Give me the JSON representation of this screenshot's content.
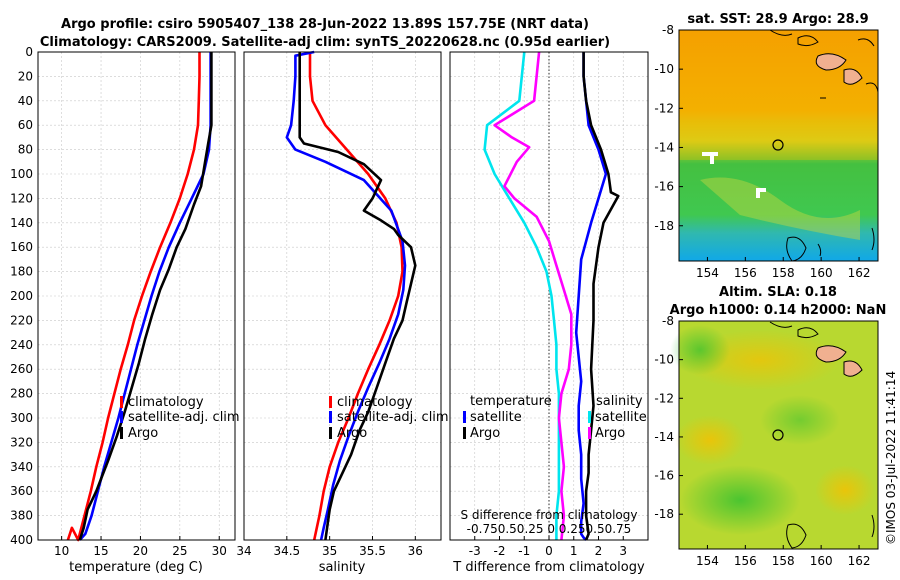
{
  "header": {
    "title_line1": "Argo profile: csiro 5905407_138 28-Jun-2022 13.89S 157.75E (NRT data)",
    "title_line2": "Climatology: CARS2009. Satellite-adj clim: synTS_20220628.nc (0.95d earlier)"
  },
  "colors": {
    "climatology": "#ff0000",
    "satellite": "#0000ff",
    "argo": "#000000",
    "satellite_s": "#00e5ee",
    "argo_s": "#ff00ff"
  },
  "chart_data": [
    {
      "type": "line",
      "id": "temperature",
      "xlabel": "temperature (deg C)",
      "ylabel": "",
      "xlim": [
        7,
        32
      ],
      "ylim": [
        0,
        400
      ],
      "xticks": [
        10,
        15,
        20,
        25,
        30
      ],
      "yticks": [
        0,
        20,
        40,
        60,
        80,
        100,
        120,
        140,
        160,
        180,
        200,
        220,
        240,
        260,
        280,
        300,
        320,
        340,
        360,
        380,
        400
      ],
      "legend": [
        "climatology",
        "satellite-adj. clim",
        "Argo"
      ],
      "legend_position": "bottom-right",
      "series": [
        {
          "name": "climatology",
          "color": "#ff0000",
          "x": [
            27.5,
            27.5,
            27.4,
            27.3,
            26.8,
            26.0,
            25.0,
            23.8,
            22.5,
            21.3,
            20.2,
            19.2,
            18.4,
            17.5,
            16.7,
            15.9,
            15.2,
            14.4,
            13.7,
            12.9,
            12.1,
            11.3,
            10.8
          ],
          "y": [
            0,
            20,
            40,
            60,
            80,
            100,
            120,
            140,
            160,
            180,
            200,
            220,
            240,
            260,
            280,
            300,
            320,
            340,
            360,
            380,
            400,
            390,
            400
          ]
        },
        {
          "name": "satellite-adj. clim",
          "color": "#0000ff",
          "x": [
            28.9,
            28.9,
            28.9,
            28.9,
            28.7,
            28.0,
            26.5,
            25.0,
            23.6,
            22.4,
            21.4,
            20.5,
            19.6,
            18.8,
            18.0,
            17.2,
            16.3,
            15.4,
            14.6,
            13.8,
            13.0,
            12.3
          ],
          "y": [
            0,
            20,
            40,
            60,
            80,
            100,
            120,
            140,
            160,
            180,
            200,
            220,
            240,
            260,
            280,
            300,
            320,
            340,
            360,
            380,
            395,
            400
          ]
        },
        {
          "name": "Argo",
          "color": "#000000",
          "x": [
            29.0,
            29.0,
            29.0,
            29.0,
            28.6,
            28.2,
            27.7,
            26.8,
            25.7,
            24.6,
            23.6,
            22.5,
            21.5,
            20.6,
            19.8,
            18.9,
            18.0,
            17.0,
            15.9,
            15.0,
            14.4,
            13.3,
            12.8,
            12.3
          ],
          "y": [
            0,
            20,
            40,
            60,
            75,
            90,
            110,
            125,
            145,
            160,
            178,
            195,
            215,
            235,
            255,
            275,
            295,
            315,
            335,
            350,
            360,
            375,
            390,
            400
          ]
        }
      ]
    },
    {
      "type": "line",
      "id": "salinity",
      "xlabel": "salinity",
      "ylabel": "",
      "xlim": [
        34,
        36.3
      ],
      "ylim": [
        0,
        400
      ],
      "xticks": [
        34,
        34.5,
        35,
        35.5,
        36
      ],
      "legend": [
        "climatology",
        "satellite-adj. clim",
        "Argo"
      ],
      "legend_position": "bottom-right",
      "series": [
        {
          "name": "climatology",
          "color": "#ff0000",
          "x": [
            34.77,
            34.77,
            34.8,
            34.95,
            35.2,
            35.45,
            35.65,
            35.78,
            35.84,
            35.85,
            35.8,
            35.7,
            35.58,
            35.45,
            35.33,
            35.22,
            35.1,
            35.0,
            34.93,
            34.88,
            34.85,
            34.82
          ],
          "y": [
            0,
            20,
            40,
            60,
            80,
            100,
            120,
            140,
            160,
            180,
            200,
            220,
            240,
            260,
            280,
            300,
            320,
            340,
            360,
            380,
            390,
            400
          ]
        },
        {
          "name": "satellite-adj. clim",
          "color": "#0000ff",
          "x": [
            34.82,
            34.6,
            34.6,
            34.58,
            34.55,
            34.5,
            34.6,
            34.95,
            35.4,
            35.72,
            35.85,
            35.88,
            35.86,
            35.8,
            35.7,
            35.58,
            35.45,
            35.33,
            35.22,
            35.12,
            35.04,
            34.98,
            34.93,
            34.9
          ],
          "y": [
            0,
            3,
            20,
            40,
            60,
            70,
            80,
            90,
            105,
            130,
            155,
            175,
            195,
            215,
            235,
            255,
            275,
            295,
            315,
            335,
            355,
            375,
            390,
            400
          ]
        },
        {
          "name": "Argo",
          "color": "#000000",
          "x": [
            34.65,
            34.65,
            34.65,
            34.65,
            34.65,
            34.7,
            35.1,
            35.4,
            35.6,
            35.5,
            35.4,
            35.6,
            35.75,
            35.8,
            35.95,
            36.0,
            35.95,
            35.9,
            35.85,
            35.75,
            35.65,
            35.55,
            35.45,
            35.35,
            35.25,
            35.15,
            35.05,
            35.0,
            34.97,
            34.95
          ],
          "y": [
            0,
            20,
            40,
            60,
            70,
            75,
            82,
            92,
            105,
            120,
            130,
            138,
            145,
            150,
            160,
            175,
            190,
            205,
            220,
            235,
            255,
            275,
            295,
            310,
            330,
            345,
            360,
            375,
            390,
            400
          ]
        }
      ]
    },
    {
      "type": "line",
      "id": "differences",
      "xlabel": "T difference from climatology",
      "top_axis_label": "S difference from climatology",
      "xlim": [
        -4,
        4
      ],
      "ylim": [
        0,
        400
      ],
      "xticks": [
        -3,
        -2,
        -1,
        0,
        1,
        2,
        3
      ],
      "top_xticks": [
        "-0.75",
        "-0.5",
        "-0.25",
        "0",
        "0.25",
        "0.5",
        "0.75"
      ],
      "top_tick_text": "-0.750.50.25 0 0.250.50.75",
      "legend_temperature": {
        "header": "temperature",
        "items": [
          "satellite",
          "Argo"
        ]
      },
      "legend_salinity": {
        "header": "salinity",
        "items": [
          "satellite",
          "Argo"
        ]
      },
      "series": [
        {
          "name": "T satellite",
          "color": "#0000ff",
          "x": [
            1.4,
            1.4,
            1.5,
            1.6,
            2.0,
            2.3,
            1.7,
            1.3,
            1.2,
            1.1,
            1.2,
            1.3,
            1.2,
            1.2,
            1.3,
            1.3,
            1.4,
            1.3,
            1.3,
            1.4,
            1.5
          ],
          "y": [
            0,
            20,
            40,
            60,
            80,
            100,
            140,
            170,
            200,
            230,
            250,
            270,
            290,
            310,
            330,
            350,
            370,
            385,
            395,
            398,
            400
          ]
        },
        {
          "name": "T Argo",
          "color": "#000000",
          "x": [
            1.4,
            1.4,
            1.5,
            1.7,
            2.1,
            2.4,
            2.5,
            2.8,
            2.2,
            2.0,
            1.8,
            1.8,
            1.7,
            1.8,
            1.7,
            1.6,
            1.6,
            1.5,
            1.5,
            1.6,
            1.5
          ],
          "y": [
            0,
            20,
            40,
            60,
            80,
            100,
            115,
            118,
            140,
            160,
            190,
            220,
            260,
            290,
            310,
            330,
            345,
            360,
            380,
            395,
            400
          ]
        },
        {
          "name": "S satellite",
          "color": "#00e5ee",
          "x": [
            -1.0,
            -1.1,
            -1.2,
            -2.5,
            -2.6,
            -2.2,
            -1.6,
            -1.0,
            -0.5,
            -0.1,
            0.1,
            0.2,
            0.3,
            0.3,
            0.4,
            0.4,
            0.4,
            0.4,
            0.3,
            0.3
          ],
          "y": [
            0,
            20,
            40,
            60,
            80,
            100,
            120,
            140,
            160,
            180,
            200,
            220,
            240,
            260,
            280,
            300,
            330,
            360,
            380,
            400
          ]
        },
        {
          "name": "S Argo",
          "color": "#ff00ff",
          "x": [
            -0.4,
            -0.5,
            -0.6,
            -2.2,
            -1.5,
            -0.8,
            -1.3,
            -1.8,
            -1.4,
            -0.5,
            0.0,
            0.3,
            0.6,
            0.9,
            0.9,
            0.8,
            0.5,
            0.4,
            0.5,
            0.6,
            0.5,
            0.6,
            0.5
          ],
          "y": [
            0,
            20,
            40,
            60,
            70,
            78,
            90,
            110,
            120,
            135,
            155,
            175,
            195,
            215,
            240,
            260,
            280,
            300,
            320,
            340,
            360,
            380,
            400
          ]
        }
      ]
    },
    {
      "type": "heatmap",
      "id": "sst_map",
      "title": "sat. SST: 28.9 Argo: 28.9",
      "xlim": [
        152.5,
        163
      ],
      "ylim": [
        -19.8,
        -8
      ],
      "xticks": [
        154,
        156,
        158,
        160,
        162
      ],
      "yticks": [
        -8,
        -10,
        -12,
        -14,
        -16,
        -18
      ],
      "marker": {
        "lon": 157.75,
        "lat": -13.89
      }
    },
    {
      "type": "heatmap",
      "id": "sla_map",
      "title_line1": "Altim. SLA: 0.18",
      "title_line2": "Argo h1000: 0.14 h2000: NaN",
      "xlim": [
        152.5,
        163
      ],
      "ylim": [
        -19.8,
        -8
      ],
      "xticks": [
        154,
        156,
        158,
        160,
        162
      ],
      "yticks": [
        -8,
        -10,
        -12,
        -14,
        -16,
        -18
      ],
      "marker": {
        "lon": 157.75,
        "lat": -13.89
      }
    }
  ],
  "footer": {
    "credit": "©IMOS 03-Jul-2022 11:41:14"
  }
}
